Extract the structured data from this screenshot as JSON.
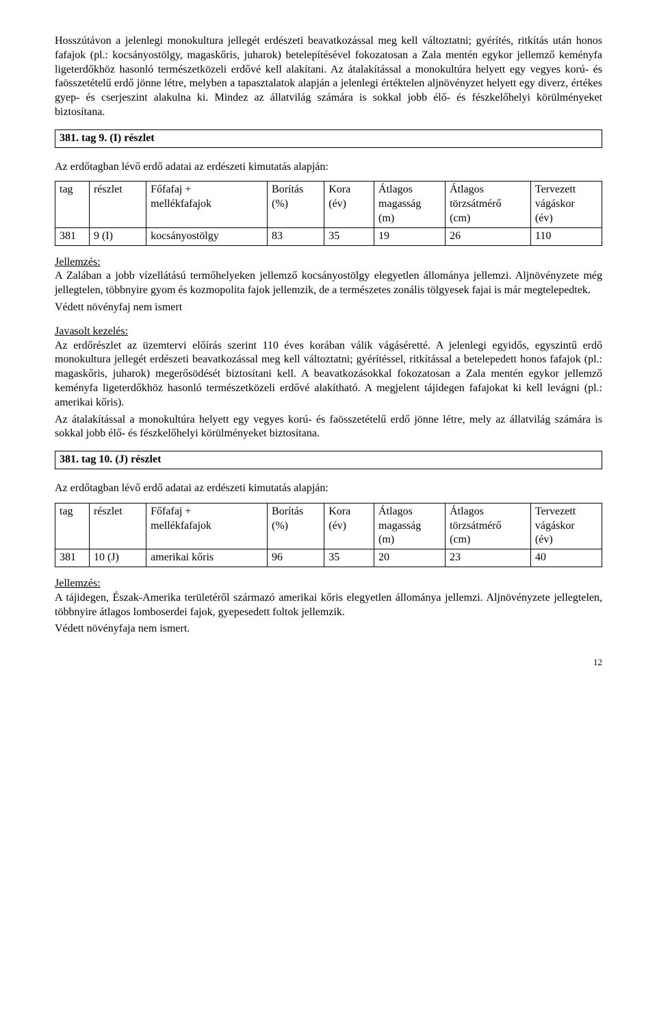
{
  "intro": {
    "p1": "Hosszútávon a jelenlegi monokultura jellegét erdészeti beavatkozással meg kell változtatni; gyérítés, ritkítás után honos fafajok (pl.: kocsányostölgy, magaskőris, juharok) betelepítésével fokozatosan a Zala mentén egykor jellemző keményfa ligeterdőkhöz hasonló természetközeli erdővé kell alakítani. Az átalakítással a monokultúra helyett egy vegyes korú- és faösszetételű erdő jönne létre, melyben a tapasztalatok alapján a jelenlegi értéktelen aljnövényzet helyett egy diverz, értékes gyep- és cserjeszint alakulna ki. Mindez az állatvilág számára is sokkal jobb élő- és fészkelőhelyi körülményeket biztosítana."
  },
  "section1": {
    "title": "381. tag 9. (I) részlet",
    "lead": "Az erdőtagban lévő erdő adatai az erdészeti kimutatás alapján:",
    "table": {
      "headers": {
        "tag": "tag",
        "reszlet": "részlet",
        "fofafaj_l1": "Főfafaj +",
        "fofafaj_l2": "mellékfafajok",
        "boritas_l1": "Borítás",
        "boritas_l2": "(%)",
        "kora_l1": "Kora",
        "kora_l2": "(év)",
        "mag_l1": "Átlagos",
        "mag_l2": "magasság",
        "mag_l3": "(m)",
        "torzs_l1": "Átlagos",
        "torzs_l2": "törzsátmérő",
        "torzs_l3": "(cm)",
        "vagas_l1": "Tervezett",
        "vagas_l2": "vágáskor",
        "vagas_l3": "(év)"
      },
      "row": {
        "tag": "381",
        "reszlet": "9 (I)",
        "fofafaj": "kocsányostölgy",
        "boritas": "83",
        "kora": "35",
        "mag": "19",
        "torzs": "26",
        "vagas": "110"
      }
    },
    "jellemzes_label": "Jellemzés:",
    "jellemzes_text": "A Zalában a jobb vízellátású termőhelyeken jellemző kocsányostölgy elegyetlen állománya jellemzi. Aljnövényzete még jellegtelen, többnyire gyom és kozmopolita fajok jellemzik, de a természetes zonális tölgyesek fajai is már megtelepedtek.",
    "vedett": "Védett növényfaj nem ismert",
    "javasolt_label": "Javasolt kezelés:",
    "javasolt_p1": "Az erdőrészlet az üzemtervi előírás szerint 110 éves korában válik vágáséretté. A jelenlegi egyidős, egyszintű erdő monokultura jellegét erdészeti beavatkozással meg kell változtatni; gyérítéssel, ritkítással a betelepedett honos fafajok (pl.: magaskőris, juharok) megerősödését biztosítani kell. A beavatkozásokkal fokozatosan a Zala mentén egykor jellemző keményfa ligeterdőkhöz hasonló természetközeli erdővé alakítható. A megjelent tájidegen fafajokat ki kell levágni (pl.: amerikai kőris).",
    "javasolt_p2": "Az átalakítással a monokultúra helyett egy vegyes korú- és faösszetételű erdő jönne létre, mely az állatvilág számára is sokkal jobb élő- és fészkelőhelyi körülményeket biztosítana."
  },
  "section2": {
    "title": "381. tag 10. (J) részlet",
    "lead": "Az erdőtagban lévő erdő adatai az erdészeti kimutatás alapján:",
    "table": {
      "headers": {
        "tag": "tag",
        "reszlet": "részlet",
        "fofafaj_l1": "Főfafaj +",
        "fofafaj_l2": "mellékfafajok",
        "boritas_l1": "Borítás",
        "boritas_l2": "(%)",
        "kora_l1": "Kora",
        "kora_l2": "(év)",
        "mag_l1": "Átlagos",
        "mag_l2": "magasság",
        "mag_l3": "(m)",
        "torzs_l1": "Átlagos",
        "torzs_l2": "törzsátmérő",
        "torzs_l3": "(cm)",
        "vagas_l1": "Tervezett",
        "vagas_l2": "vágáskor",
        "vagas_l3": "(év)"
      },
      "row": {
        "tag": "381",
        "reszlet": "10 (J)",
        "fofafaj": "amerikai kőris",
        "boritas": "96",
        "kora": "35",
        "mag": "20",
        "torzs": "23",
        "vagas": "40"
      }
    },
    "jellemzes_label": "Jellemzés:",
    "jellemzes_text": "A tájidegen, Észak-Amerika területéről származó amerikai kőris elegyetlen állománya jellemzi. Aljnövényzete jellegtelen, többnyire átlagos lomboserdei fajok, gyepesedett foltok jellemzik.",
    "vedett": "Védett növényfaja nem ismert."
  },
  "page_number": "12"
}
